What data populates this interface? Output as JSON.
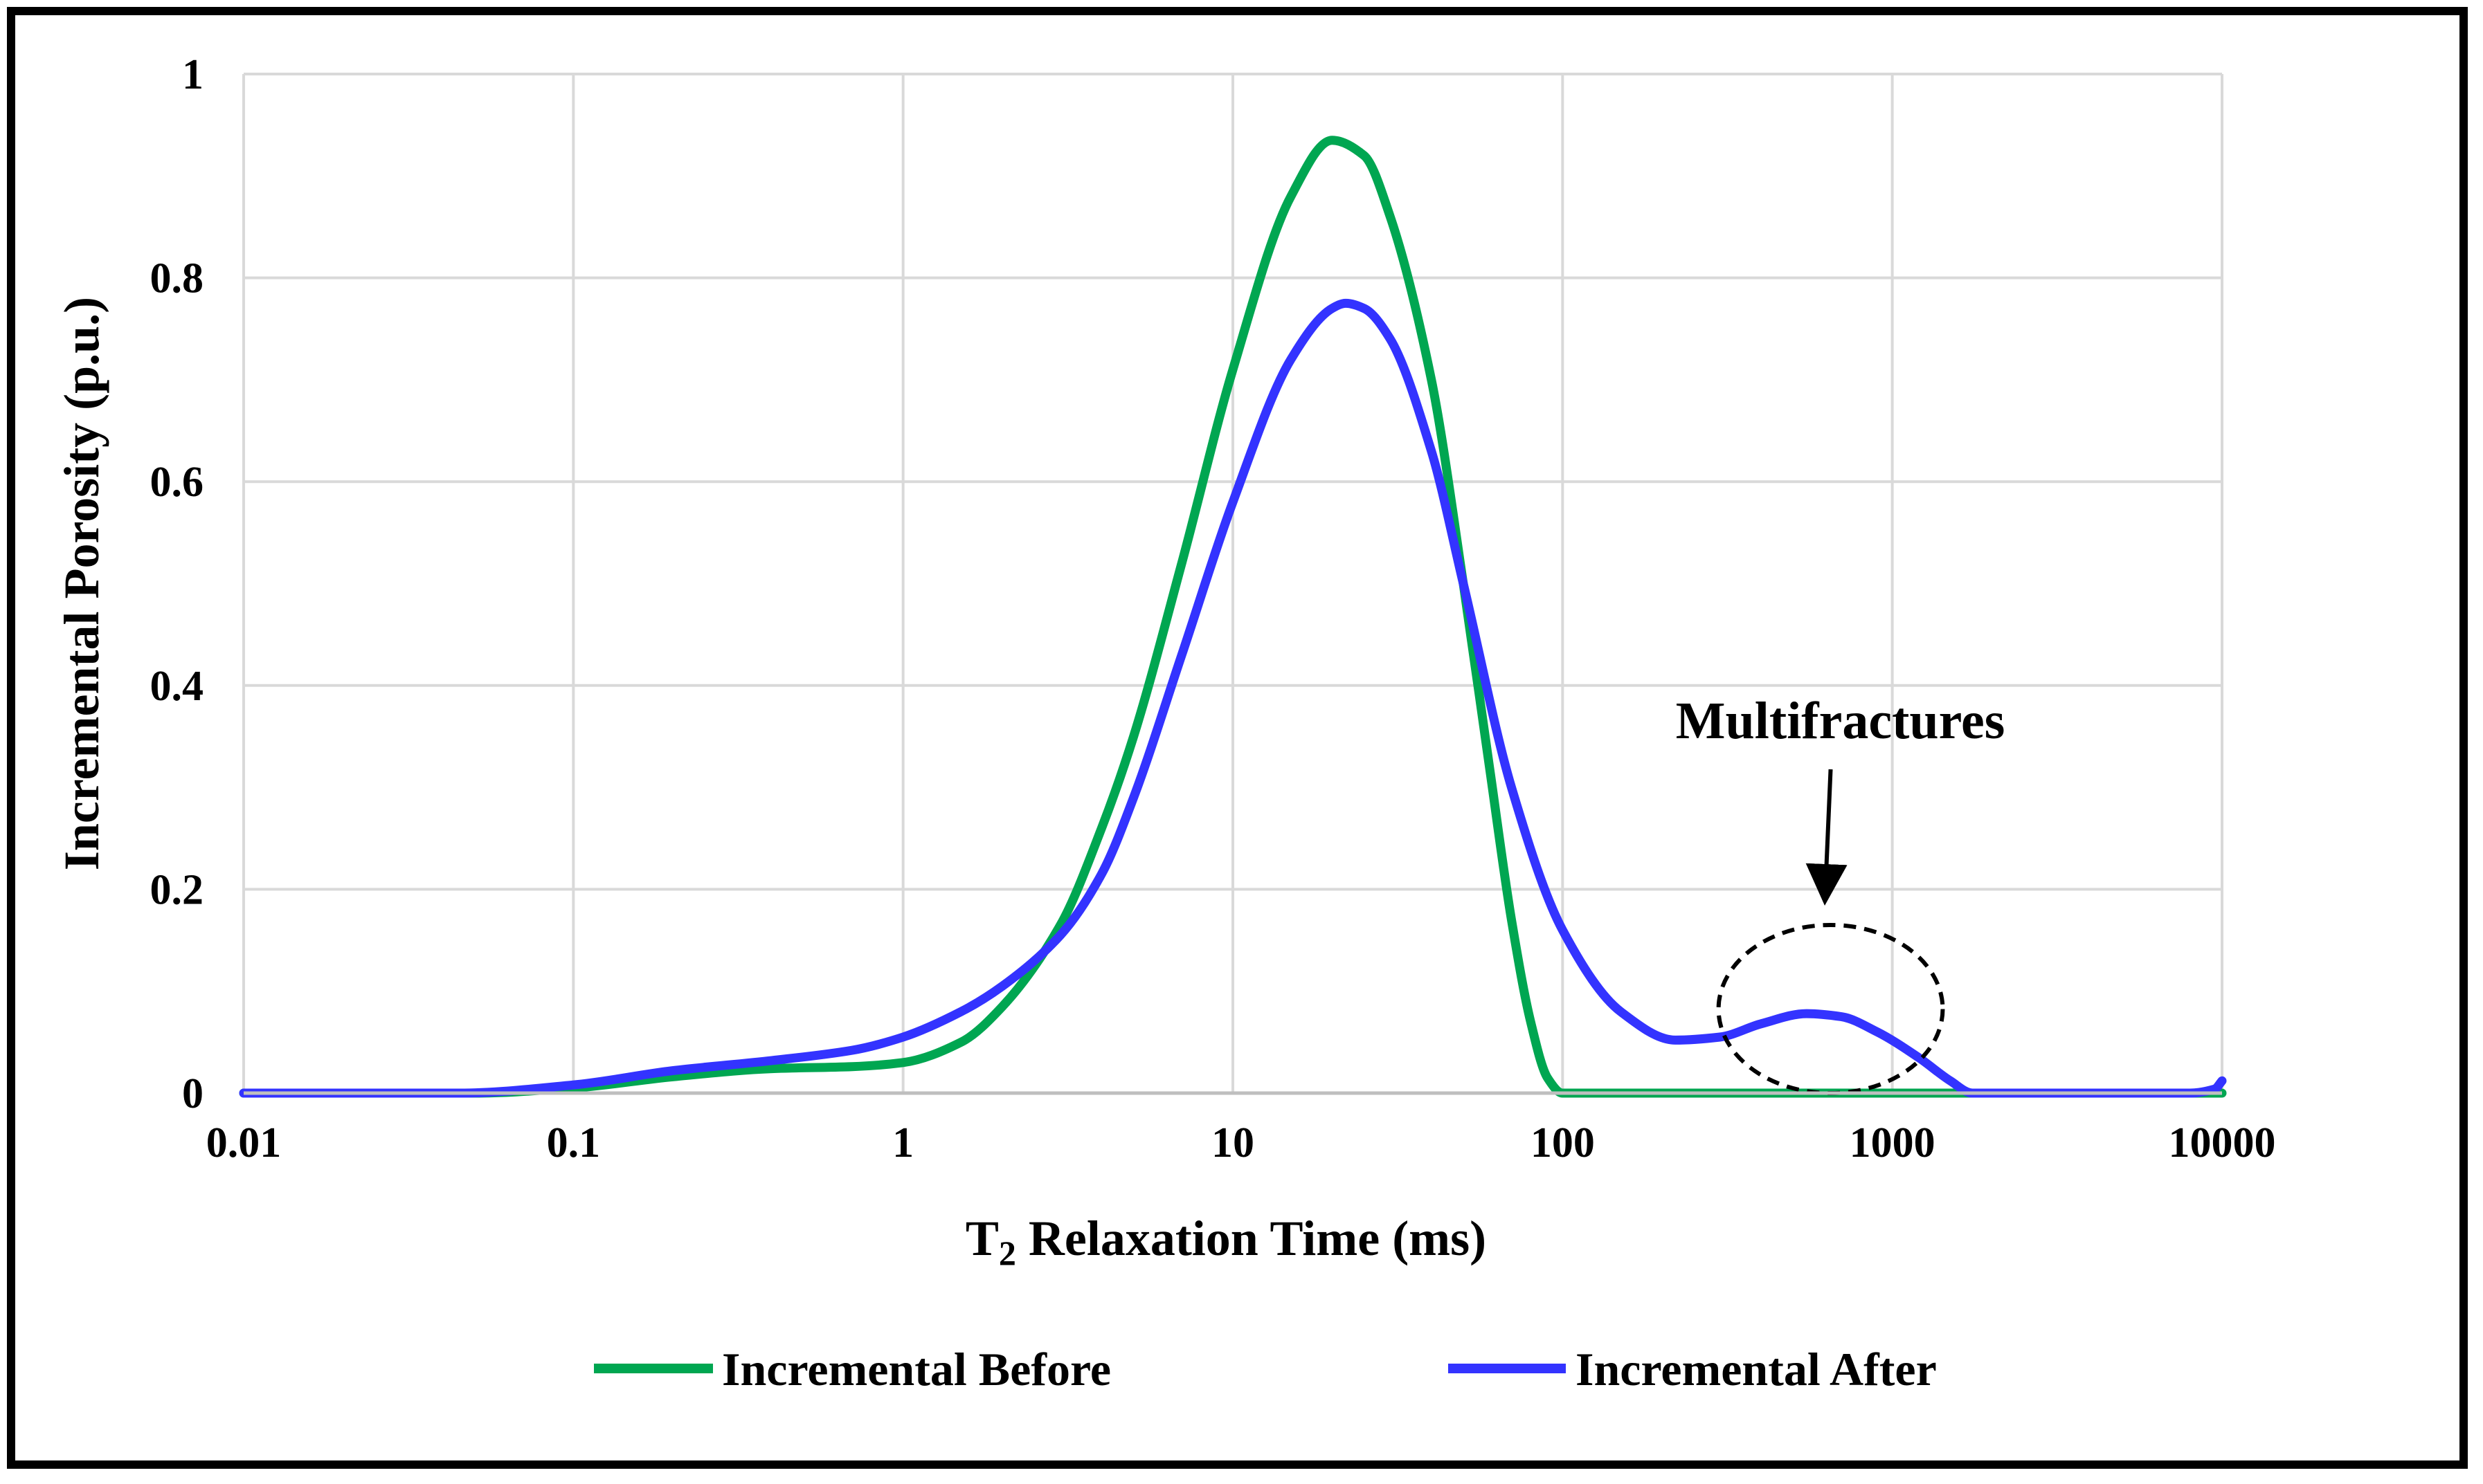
{
  "chart_data": {
    "type": "line",
    "x_scale": "log",
    "title": "",
    "xlabel_main": "T",
    "xlabel_sub": "2",
    "xlabel_rest": " Relaxation Time (ms)",
    "ylabel": "Incremental Porosity (p.u.)",
    "xlim": [
      0.01,
      10000
    ],
    "ylim": [
      0,
      1
    ],
    "x_ticks": [
      0.01,
      0.1,
      1,
      10,
      100,
      1000,
      10000
    ],
    "x_tick_labels": [
      "0.01",
      "0.1",
      "1",
      "10",
      "100",
      "1000",
      "10000"
    ],
    "y_ticks": [
      0,
      0.2,
      0.4,
      0.6,
      0.8,
      1
    ],
    "y_tick_labels": [
      "0",
      "0.2",
      "0.4",
      "0.6",
      "0.8",
      "1"
    ],
    "grid": true,
    "legend_position": "bottom",
    "series": [
      {
        "name": "Incremental Before",
        "color": "#00a651",
        "x": [
          0.01,
          0.05,
          0.1,
          0.2,
          0.4,
          0.7,
          1,
          1.5,
          2,
          3,
          4,
          5,
          7,
          10,
          15,
          20,
          25,
          30,
          40,
          50,
          60,
          70,
          80,
          90,
          100,
          200,
          500,
          1000,
          2000,
          5000,
          10000
        ],
        "y": [
          0,
          0,
          0.005,
          0.016,
          0.024,
          0.026,
          0.03,
          0.05,
          0.085,
          0.165,
          0.26,
          0.35,
          0.52,
          0.71,
          0.88,
          0.935,
          0.92,
          0.86,
          0.7,
          0.5,
          0.32,
          0.17,
          0.07,
          0.015,
          0,
          0,
          0,
          0,
          0,
          0,
          0
        ]
      },
      {
        "name": "Incremental After",
        "color": "#3333ff",
        "x": [
          0.01,
          0.045,
          0.1,
          0.2,
          0.4,
          0.7,
          1,
          1.5,
          2,
          3,
          4,
          5,
          7,
          10,
          15,
          20,
          22,
          25,
          30,
          40,
          50,
          70,
          100,
          150,
          220,
          300,
          400,
          550,
          700,
          900,
          1200,
          1500,
          1750,
          2000,
          5000,
          8000,
          9500,
          10000
        ],
        "y": [
          0,
          0,
          0.008,
          0.022,
          0.032,
          0.042,
          0.055,
          0.08,
          0.105,
          0.155,
          0.215,
          0.29,
          0.43,
          0.58,
          0.72,
          0.77,
          0.775,
          0.77,
          0.74,
          0.63,
          0.5,
          0.3,
          0.16,
          0.08,
          0.052,
          0.055,
          0.068,
          0.078,
          0.075,
          0.06,
          0.035,
          0.012,
          0,
          0,
          0,
          0,
          0.004,
          0.012
        ]
      }
    ],
    "annotation": {
      "text": "Multifractures",
      "center_x_value": 650,
      "center_y_value": 0.0825,
      "rx_decades": 0.34,
      "ry_value": 0.0825
    }
  }
}
